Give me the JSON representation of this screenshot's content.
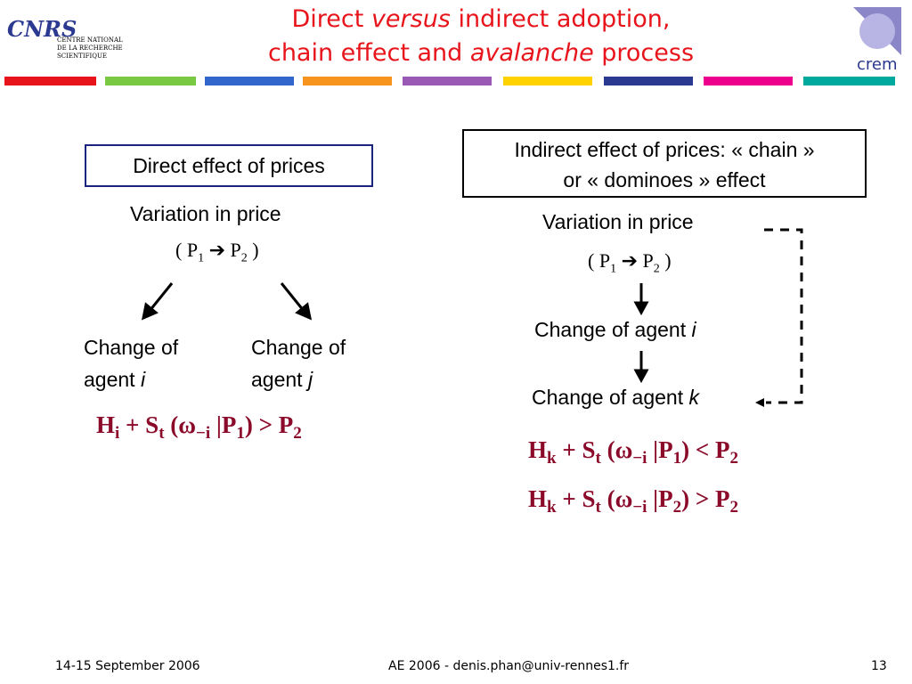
{
  "header": {
    "title": {
      "line1": [
        "Direct ",
        "versus",
        " indirect adoption,"
      ],
      "line2": [
        "chain effect and ",
        "avalanche",
        " process"
      ]
    },
    "logo_left": {
      "mark": "CNRS",
      "text": [
        "CENTRE NATIONAL",
        "DE LA RECHERCHE",
        "SCIENTIFIQUE"
      ]
    },
    "logo_right": {
      "text": "crem"
    }
  },
  "left": {
    "box": "Direct effect of prices",
    "variation": "Variation in price",
    "price": [
      "( P",
      "1",
      " ➔ P",
      "2",
      " )"
    ],
    "changes": [
      {
        "line1": "Change of",
        "line2": "agent ",
        "var": "i"
      },
      {
        "line1": "Change of",
        "line2": "agent ",
        "var": "j"
      }
    ],
    "formula": [
      "H",
      "i",
      " + S",
      "t",
      " (ω",
      "−i",
      " |P",
      "1",
      ") > P",
      "2"
    ]
  },
  "right": {
    "box": [
      "Indirect effect of prices: « chain »",
      "or « dominoes » effect"
    ],
    "variation": "Variation in price",
    "price": [
      "( P",
      "1",
      " ➔ P",
      "2",
      " )"
    ],
    "changes": [
      {
        "text": "Change of agent ",
        "var": "i"
      },
      {
        "text": "Change of agent ",
        "var": "k"
      }
    ],
    "formulas": [
      [
        "H",
        "k",
        " + S",
        "t",
        " (ω",
        "−i",
        " |P",
        "1",
        ") < P",
        "2"
      ],
      [
        "H",
        "k",
        " + S",
        "t",
        " (ω",
        "−i",
        " |P",
        "2",
        ") > P",
        "2"
      ]
    ]
  },
  "footer": {
    "date": "14-15 September 2006",
    "center": "AE 2006 - denis.phan@univ-rennes1.fr",
    "page": 13
  }
}
